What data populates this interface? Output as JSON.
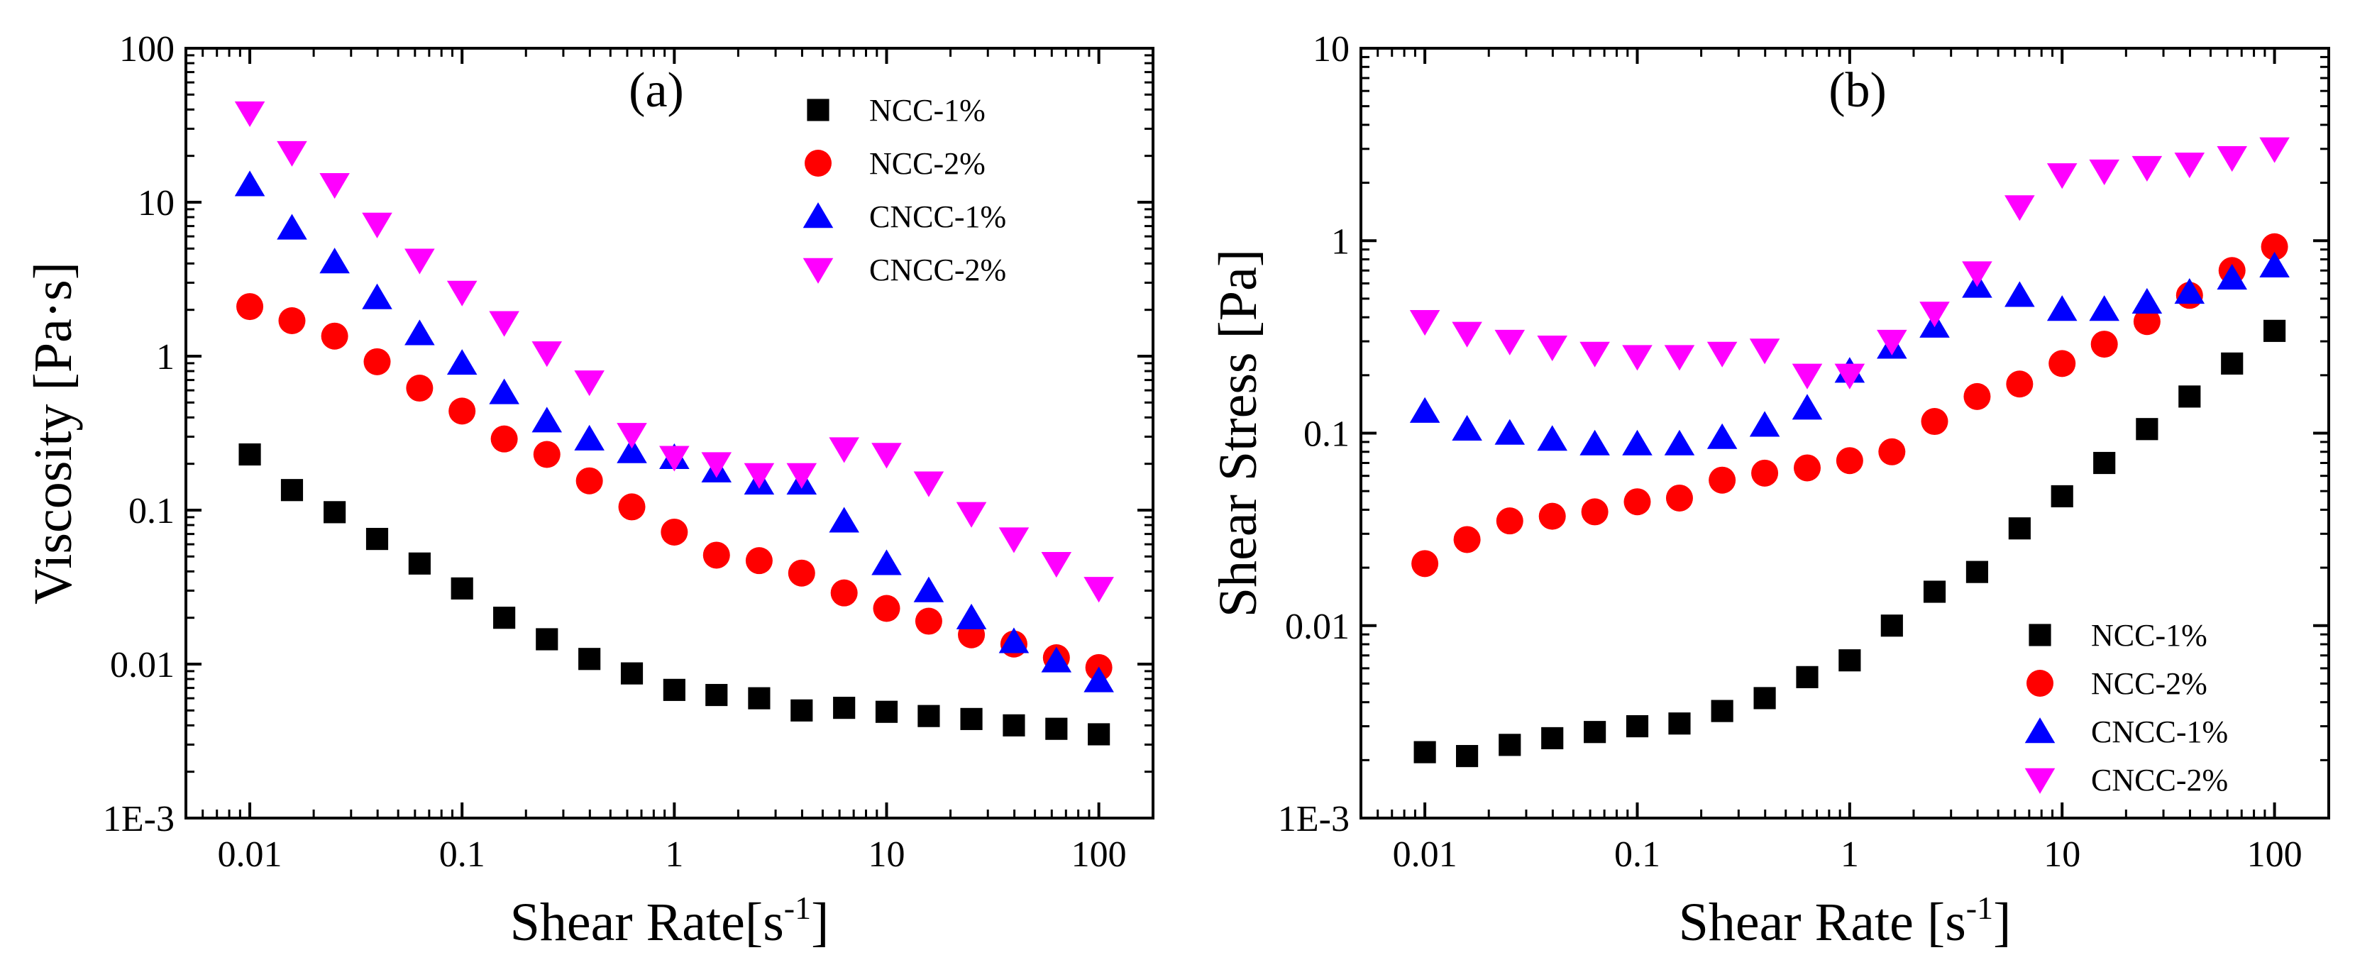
{
  "chart_data": [
    {
      "type": "scatter",
      "panel_label": "(a)",
      "xlabel": "Shear Rate[s",
      "xlabel_sup": "-1",
      "xlabel_end": "]",
      "ylabel": "Viscosity [Pa·s]",
      "xscale": "log",
      "yscale": "log",
      "xlim": [
        0.005,
        180
      ],
      "ylim": [
        0.001,
        100
      ],
      "x_ticks": [
        0.01,
        0.1,
        1,
        10,
        100
      ],
      "x_tick_labels": [
        "0.01",
        "0.1",
        "1",
        "10",
        "100"
      ],
      "y_ticks": [
        0.001,
        0.01,
        0.1,
        1,
        10,
        100
      ],
      "y_tick_labels": [
        "1E-3",
        "0.01",
        "0.1",
        "1",
        "10",
        "100"
      ],
      "legend_position": "top-right",
      "x": [
        0.01,
        0.0158,
        0.0251,
        0.0398,
        0.0631,
        0.1,
        0.158,
        0.251,
        0.398,
        0.631,
        1,
        1.58,
        2.51,
        3.98,
        6.31,
        10,
        15.8,
        25.1,
        39.8,
        63.1,
        100
      ],
      "series": [
        {
          "name": "NCC-1%",
          "marker": "square",
          "color": "#000000",
          "values": [
            0.23,
            0.135,
            0.097,
            0.065,
            0.045,
            0.031,
            0.02,
            0.0145,
            0.0108,
            0.0087,
            0.0068,
            0.0063,
            0.006,
            0.005,
            0.0052,
            0.0049,
            0.0046,
            0.0044,
            0.004,
            0.0038,
            0.0035
          ]
        },
        {
          "name": "NCC-2%",
          "marker": "circle",
          "color": "#ff0000",
          "values": [
            2.1,
            1.7,
            1.35,
            0.92,
            0.62,
            0.44,
            0.29,
            0.23,
            0.155,
            0.105,
            0.072,
            0.051,
            0.047,
            0.039,
            0.029,
            0.023,
            0.019,
            0.0155,
            0.0135,
            0.011,
            0.0095
          ]
        },
        {
          "name": "CNCC-1%",
          "marker": "triangle-up",
          "color": "#0000ff",
          "values": [
            13,
            6.8,
            4.1,
            2.4,
            1.4,
            0.9,
            0.58,
            0.38,
            0.29,
            0.24,
            0.22,
            0.18,
            0.15,
            0.15,
            0.085,
            0.045,
            0.03,
            0.02,
            0.014,
            0.0105,
            0.0078
          ]
        },
        {
          "name": "CNCC-2%",
          "marker": "triangle-down",
          "color": "#ff00ff",
          "values": [
            38,
            21,
            13,
            7.2,
            4.2,
            2.6,
            1.65,
            1.05,
            0.68,
            0.31,
            0.22,
            0.2,
            0.17,
            0.17,
            0.25,
            0.23,
            0.15,
            0.095,
            0.065,
            0.045,
            0.031
          ]
        }
      ]
    },
    {
      "type": "scatter",
      "panel_label": "(b)",
      "xlabel": "Shear Rate [s",
      "xlabel_sup": "-1",
      "xlabel_end": "]",
      "ylabel": "Shear Stress [Pa]",
      "xscale": "log",
      "yscale": "log",
      "xlim": [
        0.005,
        180
      ],
      "ylim": [
        0.001,
        10
      ],
      "x_ticks": [
        0.01,
        0.1,
        1,
        10,
        100
      ],
      "x_tick_labels": [
        "0.01",
        "0.1",
        "1",
        "10",
        "100"
      ],
      "y_ticks": [
        0.001,
        0.01,
        0.1,
        1,
        10
      ],
      "y_tick_labels": [
        "1E-3",
        "0.01",
        "0.1",
        "1",
        "10"
      ],
      "legend_position": "bottom-right",
      "x": [
        0.01,
        0.0158,
        0.0251,
        0.0398,
        0.0631,
        0.1,
        0.158,
        0.251,
        0.398,
        0.631,
        1,
        1.58,
        2.51,
        3.98,
        6.31,
        10,
        15.8,
        25.1,
        39.8,
        63.1,
        100
      ],
      "series": [
        {
          "name": "NCC-1%",
          "marker": "square",
          "color": "#000000",
          "values": [
            0.0022,
            0.0021,
            0.0024,
            0.0026,
            0.0028,
            0.003,
            0.0031,
            0.0036,
            0.0042,
            0.0054,
            0.0066,
            0.01,
            0.015,
            0.019,
            0.032,
            0.047,
            0.07,
            0.105,
            0.155,
            0.23,
            0.34
          ]
        },
        {
          "name": "NCC-2%",
          "marker": "circle",
          "color": "#ff0000",
          "values": [
            0.021,
            0.028,
            0.035,
            0.037,
            0.039,
            0.044,
            0.046,
            0.057,
            0.062,
            0.066,
            0.072,
            0.08,
            0.115,
            0.155,
            0.18,
            0.23,
            0.29,
            0.38,
            0.52,
            0.7,
            0.93
          ]
        },
        {
          "name": "CNCC-1%",
          "marker": "triangle-up",
          "color": "#0000ff",
          "values": [
            0.13,
            0.105,
            0.1,
            0.093,
            0.088,
            0.088,
            0.088,
            0.095,
            0.11,
            0.135,
            0.21,
            0.28,
            0.36,
            0.58,
            0.52,
            0.44,
            0.44,
            0.48,
            0.54,
            0.64,
            0.74
          ]
        },
        {
          "name": "CNCC-2%",
          "marker": "triangle-down",
          "color": "#ff00ff",
          "values": [
            0.38,
            0.33,
            0.3,
            0.28,
            0.26,
            0.25,
            0.25,
            0.26,
            0.27,
            0.2,
            0.2,
            0.3,
            0.42,
            0.68,
            1.5,
            2.2,
            2.3,
            2.4,
            2.5,
            2.7,
            3
          ]
        }
      ]
    }
  ]
}
